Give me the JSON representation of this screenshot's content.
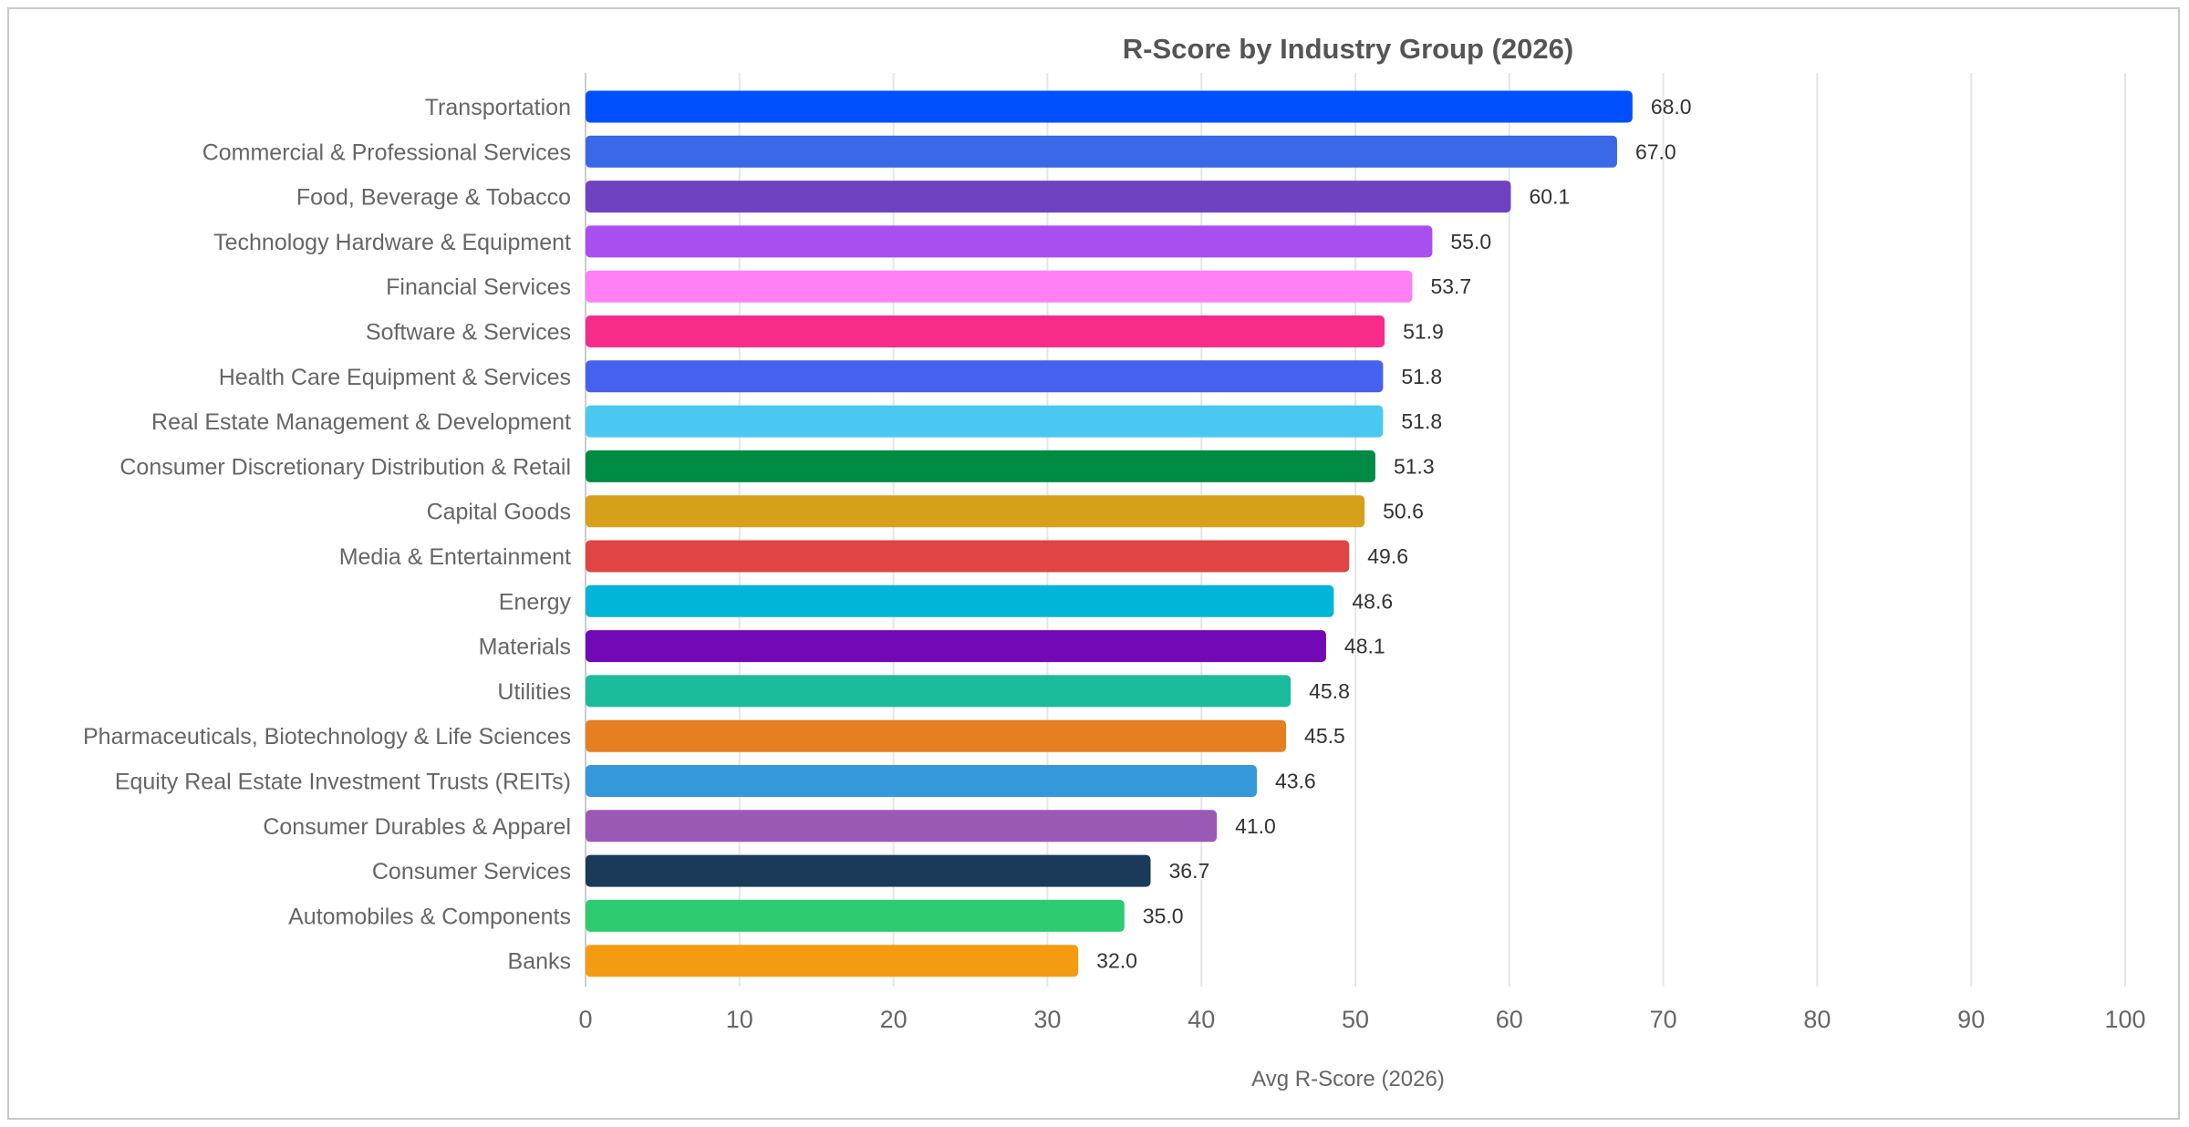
{
  "chart_data": {
    "type": "bar",
    "orientation": "horizontal",
    "title": "R-Score by Industry Group (2026)",
    "xlabel": "Avg R-Score (2026)",
    "ylabel": "",
    "xlim": [
      0,
      100
    ],
    "xticks": [
      0,
      10,
      20,
      30,
      40,
      50,
      60,
      70,
      80,
      90,
      100
    ],
    "grid": true,
    "legend": "none",
    "categories": [
      "Transportation",
      "Commercial & Professional Services",
      "Food, Beverage & Tobacco",
      "Technology Hardware & Equipment",
      "Financial Services",
      "Software & Services",
      "Health Care Equipment & Services",
      "Real Estate Management & Development",
      "Consumer Discretionary Distribution & Retail",
      "Capital Goods",
      "Media & Entertainment",
      "Energy",
      "Materials",
      "Utilities",
      "Pharmaceuticals, Biotechnology & Life Sciences",
      "Equity Real Estate Investment Trusts (REITs)",
      "Consumer Durables & Apparel",
      "Consumer Services",
      "Automobiles & Components",
      "Banks"
    ],
    "values": [
      68.0,
      67.0,
      60.1,
      55.0,
      53.7,
      51.9,
      51.8,
      51.8,
      51.3,
      50.6,
      49.6,
      48.6,
      48.1,
      45.8,
      45.5,
      43.6,
      41.0,
      36.7,
      35.0,
      32.0
    ],
    "value_labels": [
      "68.0",
      "67.0",
      "60.1",
      "55.0",
      "53.7",
      "51.9",
      "51.8",
      "51.8",
      "51.3",
      "50.6",
      "49.6",
      "48.6",
      "48.1",
      "45.8",
      "45.5",
      "43.6",
      "41.0",
      "36.7",
      "35.0",
      "32.0"
    ],
    "colors": [
      "#0050ff",
      "#3a68e6",
      "#6f42c1",
      "#a94ff0",
      "#ff80f5",
      "#f72b8a",
      "#4661ee",
      "#4ac8f1",
      "#008b45",
      "#d6a01b",
      "#e04444",
      "#00b5d8",
      "#7209b7",
      "#1abc9c",
      "#e67e22",
      "#3498db",
      "#9b59b6",
      "#1b3a5a",
      "#2ecc71",
      "#f39c12"
    ]
  }
}
